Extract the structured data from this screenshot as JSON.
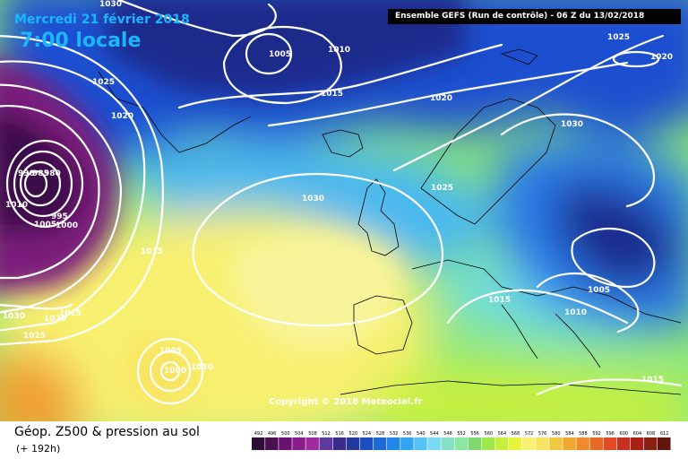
{
  "header": {
    "date": "Mercredi 21 février 2018",
    "time": "7:00 locale",
    "run": "Ensemble GEFS  (Run de contrôle)  - 06 Z du 13/02/2018"
  },
  "copyright": "Copyright © 2018 Meteociel.fr",
  "footer": {
    "variable": "Géop. Z500 & pression au sol",
    "forecast_range": "(+ 192h)"
  },
  "legend": {
    "values": [
      "492",
      "496",
      "500",
      "504",
      "508",
      "512",
      "516",
      "520",
      "524",
      "528",
      "532",
      "536",
      "540",
      "544",
      "548",
      "552",
      "556",
      "560",
      "564",
      "568",
      "572",
      "576",
      "580",
      "584",
      "588",
      "592",
      "596",
      "600",
      "604",
      "608",
      "612"
    ],
    "colors": [
      "#2e0e34",
      "#4a1150",
      "#6b0f70",
      "#8a1c8c",
      "#a02a9e",
      "#5d3aa0",
      "#3a2c8c",
      "#223a9e",
      "#1c4fbe",
      "#1e6ad6",
      "#2188e8",
      "#35a4f0",
      "#55c4f4",
      "#7ad8f0",
      "#86e0c8",
      "#8ce8a0",
      "#7ed870",
      "#9ee84c",
      "#c6f03c",
      "#e8f43c",
      "#f8f070",
      "#f8e460",
      "#f0c840",
      "#f0a830",
      "#f08a2c",
      "#e86a28",
      "#e04a24",
      "#c83020",
      "#a82018",
      "#882014",
      "#601410"
    ]
  },
  "map_colors": {
    "purple_low": "#7a1a7c",
    "deep_purple": "#3a0e48",
    "navy": "#1a2c8c",
    "blue": "#1c4fd0",
    "mid_blue": "#2a7ae8",
    "cyan": "#48b8f0",
    "aqua": "#70dce0",
    "green": "#8ee878",
    "lime": "#c8f040",
    "yellow": "#f8f070",
    "pale_yellow": "#f8f49a",
    "orange": "#f0a030",
    "isobar": "#ffffff",
    "coastline": "#000000"
  },
  "isobars": [
    {
      "id": "1030-top-left",
      "text": "1030"
    },
    {
      "id": "1025-north-atlantic",
      "text": "1025"
    },
    {
      "id": "1020-north-atlantic",
      "text": "1020"
    },
    {
      "id": "990-low",
      "text": "990"
    },
    {
      "id": "985-low",
      "text": "985"
    },
    {
      "id": "980-low",
      "text": "980"
    },
    {
      "id": "1010-west",
      "text": "1010"
    },
    {
      "id": "1005-west",
      "text": "1005"
    },
    {
      "id": "995-west",
      "text": "995"
    },
    {
      "id": "1000-west",
      "text": "1000"
    },
    {
      "id": "1015-mid-atlantic",
      "text": "1015"
    },
    {
      "id": "1030-west-edge",
      "text": "1030"
    },
    {
      "id": "1020-south-west",
      "text": "1020"
    },
    {
      "id": "1015-south-west",
      "text": "1015"
    },
    {
      "id": "1025-south-west",
      "text": "1025"
    },
    {
      "id": "1005-greenland",
      "text": "1005"
    },
    {
      "id": "1010-greenland",
      "text": "1010"
    },
    {
      "id": "1015-greenland",
      "text": "1015"
    },
    {
      "id": "1020-norwegian-sea",
      "text": "1020"
    },
    {
      "id": "1025-top-right",
      "text": "1025"
    },
    {
      "id": "1020-top-right",
      "text": "1020"
    },
    {
      "id": "1030-scandinavia",
      "text": "1030"
    },
    {
      "id": "1025-north-sea",
      "text": "1025"
    },
    {
      "id": "1030-atlantic-high",
      "text": "1030"
    },
    {
      "id": "1005-azores",
      "text": "1005"
    },
    {
      "id": "1000-azores",
      "text": "1000"
    },
    {
      "id": "1010-azores",
      "text": "1010"
    },
    {
      "id": "1015-central-europe",
      "text": "1015"
    },
    {
      "id": "1010-east-europe",
      "text": "1010"
    },
    {
      "id": "1005-russia",
      "text": "1005"
    },
    {
      "id": "1015-south-east",
      "text": "1015"
    }
  ]
}
